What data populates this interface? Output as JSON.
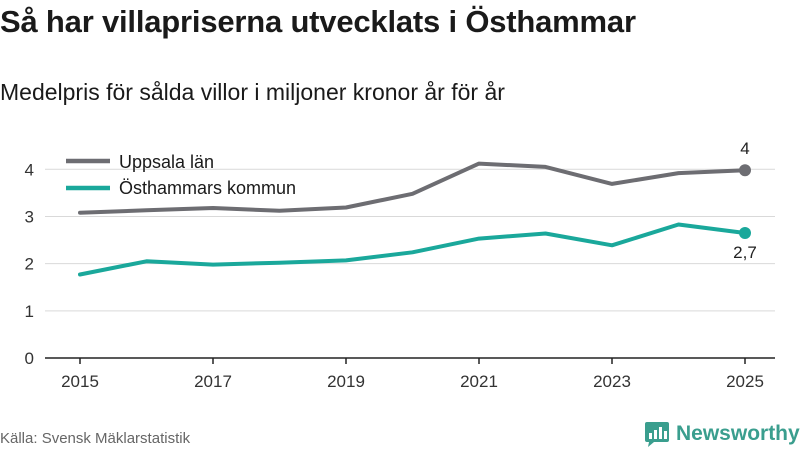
{
  "title": "Så har villapriserna utvecklats i Östhammar",
  "subtitle": "Medelpris för sålda villor i miljoner kronor år för år",
  "source": "Källa: Svensk Mäklarstatistik",
  "brand": "Newsworthy",
  "colors": {
    "uppsala": "#6d6d72",
    "osthammar": "#1aa89b",
    "grid": "#d9d9d9",
    "axis": "#222222",
    "brand": "#3a9e8e"
  },
  "chart_data": {
    "type": "line",
    "title": "Så har villapriserna utvecklats i Östhammar",
    "subtitle": "Medelpris för sålda villor i miljoner kronor år för år",
    "xlabel": "",
    "ylabel": "",
    "x": [
      2015,
      2016,
      2017,
      2018,
      2019,
      2020,
      2021,
      2022,
      2023,
      2024,
      2025
    ],
    "xticks": [
      "2015",
      "2017",
      "2019",
      "2021",
      "2023",
      "2025"
    ],
    "yticks": [
      "0",
      "1",
      "2",
      "3",
      "4"
    ],
    "ylim": [
      0,
      4.6
    ],
    "grid": true,
    "legend": "top-left",
    "series": [
      {
        "name": "Uppsala län",
        "values": [
          3.08,
          3.13,
          3.18,
          3.12,
          3.19,
          3.48,
          4.12,
          4.05,
          3.69,
          3.92,
          3.98
        ],
        "end_label": "4"
      },
      {
        "name": "Östhammars kommun",
        "values": [
          1.77,
          2.05,
          1.98,
          2.02,
          2.07,
          2.24,
          2.53,
          2.64,
          2.39,
          2.83,
          2.65
        ],
        "end_label": "2,7"
      }
    ]
  }
}
